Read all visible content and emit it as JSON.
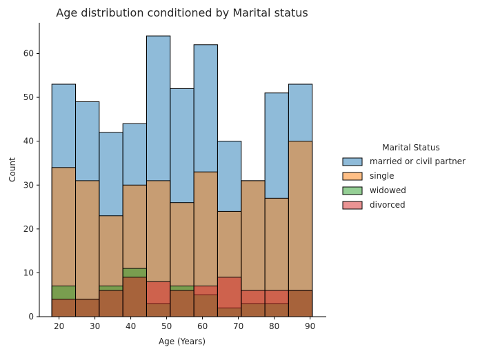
{
  "chart_data": {
    "type": "bar",
    "title": "Age distribution conditioned by Marital status",
    "xlabel": "Age (Years)",
    "ylabel": "Count",
    "xlim": [
      14.5,
      94.5
    ],
    "ylim": [
      0,
      67
    ],
    "xticks": [
      20,
      30,
      40,
      50,
      60,
      70,
      80,
      90
    ],
    "yticks": [
      0,
      10,
      20,
      30,
      40,
      50,
      60
    ],
    "bin_edges": [
      18,
      24.6,
      31.2,
      37.8,
      44.4,
      51,
      57.6,
      64.2,
      70.8,
      77.4,
      84,
      90.6
    ],
    "grid": false,
    "legend_title": "Marital Status",
    "legend_position": "right",
    "series": [
      {
        "name": "married or civil partner",
        "color": "#1f77b4",
        "values": [
          53,
          49,
          42,
          44,
          64,
          52,
          62,
          40,
          31,
          51,
          53
        ]
      },
      {
        "name": "single",
        "color": "#ff7f0e",
        "values": [
          34,
          31,
          23,
          30,
          31,
          26,
          33,
          24,
          31,
          27,
          40
        ]
      },
      {
        "name": "widowed",
        "color": "#2ca02c",
        "values": [
          7,
          4,
          7,
          11,
          3,
          7,
          5,
          2,
          3,
          3,
          6
        ]
      },
      {
        "name": "divorced",
        "color": "#d62728",
        "values": [
          4,
          4,
          6,
          9,
          8,
          6,
          7,
          9,
          6,
          6,
          6
        ]
      }
    ]
  }
}
